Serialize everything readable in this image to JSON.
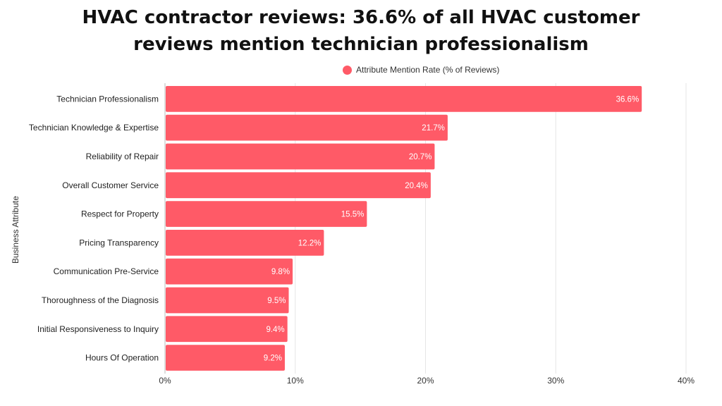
{
  "chart_data": {
    "type": "bar",
    "orientation": "horizontal",
    "title_lines": [
      "HVAC contractor reviews: 36.6% of all HVAC customer",
      "reviews mention technician professionalism"
    ],
    "ylabel": "Business Attribute",
    "xlabel": "",
    "xlim": [
      0,
      40
    ],
    "x_ticks": [
      "0%",
      "10%",
      "20%",
      "30%",
      "40%"
    ],
    "x_tick_values": [
      0,
      10,
      20,
      30,
      40
    ],
    "grid": true,
    "legend_position": "top-center",
    "series": [
      {
        "name": "Attribute Mention Rate (% of Reviews)",
        "color": "#ff5a67",
        "values": [
          36.6,
          21.7,
          20.7,
          20.4,
          15.5,
          12.2,
          9.8,
          9.5,
          9.4,
          9.2
        ],
        "labels": [
          "36.6%",
          "21.7%",
          "20.7%",
          "20.4%",
          "15.5%",
          "12.2%",
          "9.8%",
          "9.5%",
          "9.4%",
          "9.2%"
        ]
      }
    ],
    "categories": [
      "Technician Professionalism",
      "Technician Knowledge & Expertise",
      "Reliability of Repair",
      "Overall Customer Service",
      "Respect for Property",
      "Pricing Transparency",
      "Communication Pre-Service",
      "Thoroughness of the Diagnosis",
      "Initial Responsiveness to Inquiry",
      "Hours Of Operation"
    ]
  }
}
